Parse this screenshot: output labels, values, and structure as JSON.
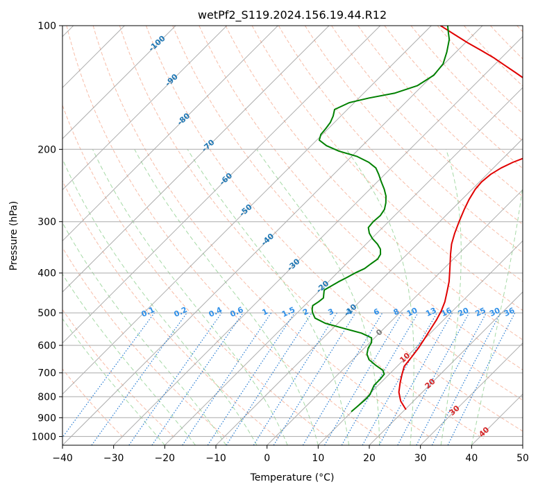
{
  "chart_data": {
    "type": "line",
    "title": "wetPf2_S119.2024.156.19.44.R12",
    "xlabel": "Temperature (°C)",
    "ylabel": "Pressure (hPa)",
    "xlim": [
      -40,
      50
    ],
    "ylim": [
      1050,
      100
    ],
    "y_scale": "log",
    "grid": true,
    "x_ticks": [
      -40,
      -30,
      -20,
      -10,
      0,
      10,
      20,
      30,
      40,
      50
    ],
    "y_ticks": [
      1000,
      900,
      800,
      700,
      600,
      500,
      400,
      300,
      200,
      100
    ],
    "skew_deg": 45,
    "series": [
      {
        "name": "temperature",
        "color": "#e00000",
        "points": [
          [
            20.2,
            860
          ],
          [
            17.5,
            820
          ],
          [
            15.4,
            780
          ],
          [
            13.8,
            740
          ],
          [
            12.5,
            705
          ],
          [
            11.4,
            675
          ],
          [
            11.0,
            640
          ],
          [
            10.6,
            610
          ],
          [
            10.0,
            580
          ],
          [
            9.3,
            550
          ],
          [
            8.6,
            520
          ],
          [
            7.8,
            495
          ],
          [
            6.7,
            470
          ],
          [
            5.2,
            445
          ],
          [
            3.6,
            420
          ],
          [
            2.0,
            400
          ],
          [
            0.3,
            380
          ],
          [
            -1.5,
            360
          ],
          [
            -3.3,
            340
          ],
          [
            -4.8,
            320
          ],
          [
            -6.2,
            300
          ],
          [
            -7.6,
            280
          ],
          [
            -8.6,
            265
          ],
          [
            -9.4,
            250
          ],
          [
            -9.6,
            240
          ],
          [
            -9.3,
            230
          ],
          [
            -8.5,
            222
          ],
          [
            -7.3,
            215
          ],
          [
            -6.0,
            210
          ],
          [
            -5.0,
            205
          ],
          [
            -4.4,
            200
          ],
          [
            -3.8,
            195
          ],
          [
            -3.6,
            190
          ],
          [
            -3.7,
            185
          ],
          [
            -4.0,
            180
          ],
          [
            -4.6,
            175
          ],
          [
            -5.4,
            170
          ],
          [
            -6.6,
            165
          ],
          [
            -8.4,
            160
          ],
          [
            -10.3,
            155
          ],
          [
            -12.8,
            150
          ],
          [
            -15.5,
            145
          ],
          [
            -18.2,
            140
          ],
          [
            -21.2,
            135
          ],
          [
            -24.4,
            130
          ],
          [
            -27.8,
            125
          ],
          [
            -31.3,
            120
          ],
          [
            -35.3,
            115
          ],
          [
            -39.6,
            110
          ],
          [
            -43.8,
            105
          ],
          [
            -48.2,
            100
          ]
        ]
      },
      {
        "name": "dewpoint",
        "color": "#008000",
        "points": [
          [
            9.9,
            870
          ],
          [
            10.1,
            840
          ],
          [
            10.3,
            810
          ],
          [
            10.2,
            790
          ],
          [
            9.7,
            770
          ],
          [
            9.2,
            750
          ],
          [
            9.2,
            725
          ],
          [
            9.0,
            705
          ],
          [
            8.0,
            690
          ],
          [
            5.5,
            670
          ],
          [
            3.2,
            650
          ],
          [
            1.7,
            630
          ],
          [
            0.8,
            610
          ],
          [
            0.3,
            590
          ],
          [
            -0.6,
            575
          ],
          [
            -3.5,
            560
          ],
          [
            -8.0,
            545
          ],
          [
            -12.5,
            530
          ],
          [
            -15.5,
            515
          ],
          [
            -17.0,
            500
          ],
          [
            -17.8,
            490
          ],
          [
            -18.4,
            480
          ],
          [
            -18.0,
            470
          ],
          [
            -17.8,
            460
          ],
          [
            -18.5,
            450
          ],
          [
            -19.2,
            440
          ],
          [
            -18.6,
            430
          ],
          [
            -18.0,
            420
          ],
          [
            -17.2,
            410
          ],
          [
            -16.5,
            400
          ],
          [
            -15.5,
            390
          ],
          [
            -15.2,
            380
          ],
          [
            -14.8,
            370
          ],
          [
            -15.2,
            360
          ],
          [
            -16.2,
            350
          ],
          [
            -17.8,
            340
          ],
          [
            -19.8,
            330
          ],
          [
            -21.5,
            320
          ],
          [
            -22.8,
            310
          ],
          [
            -23.0,
            300
          ],
          [
            -22.8,
            290
          ],
          [
            -23.2,
            280
          ],
          [
            -24.2,
            270
          ],
          [
            -25.5,
            260
          ],
          [
            -27.2,
            250
          ],
          [
            -29.2,
            240
          ],
          [
            -31.2,
            230
          ],
          [
            -33.0,
            222
          ],
          [
            -35.5,
            215
          ],
          [
            -39.0,
            208
          ],
          [
            -43.5,
            202
          ],
          [
            -47.0,
            196
          ],
          [
            -49.5,
            190
          ],
          [
            -50.3,
            184
          ],
          [
            -50.5,
            178
          ],
          [
            -50.8,
            172
          ],
          [
            -51.5,
            166
          ],
          [
            -52.5,
            160
          ],
          [
            -51.0,
            154
          ],
          [
            -48.0,
            150
          ],
          [
            -44.0,
            146
          ],
          [
            -41.0,
            140
          ],
          [
            -39.8,
            132
          ],
          [
            -40.2,
            124
          ],
          [
            -41.8,
            116
          ],
          [
            -43.8,
            108
          ],
          [
            -45.3,
            104
          ],
          [
            -46.8,
            100
          ]
        ]
      }
    ],
    "dry_adiabat_labels": [
      "-100",
      "-90",
      "-80",
      "-70",
      "-60",
      "-50",
      "-40",
      "-30",
      "-20",
      "-10",
      "0",
      "10",
      "20",
      "30",
      "40"
    ],
    "mixing_ratio_labels": [
      "0.1",
      "0.2",
      "0.4",
      "0.6",
      "1",
      "1.5",
      "2",
      "3",
      "4",
      "6",
      "8",
      "10",
      "13",
      "16",
      "20",
      "25",
      "30",
      "36"
    ],
    "colors": {
      "isotherm": "#999999",
      "isobar": "#aaaaaa",
      "dry_adiabat": "#f4a58a",
      "moist_adiabat": "#8fcf8f",
      "mixing_ratio": "#1f77d0",
      "blue_label": "#1f77b4",
      "red_label": "#d62728",
      "mr_label": "#2f8fe8",
      "gray_label": "#777777"
    }
  }
}
